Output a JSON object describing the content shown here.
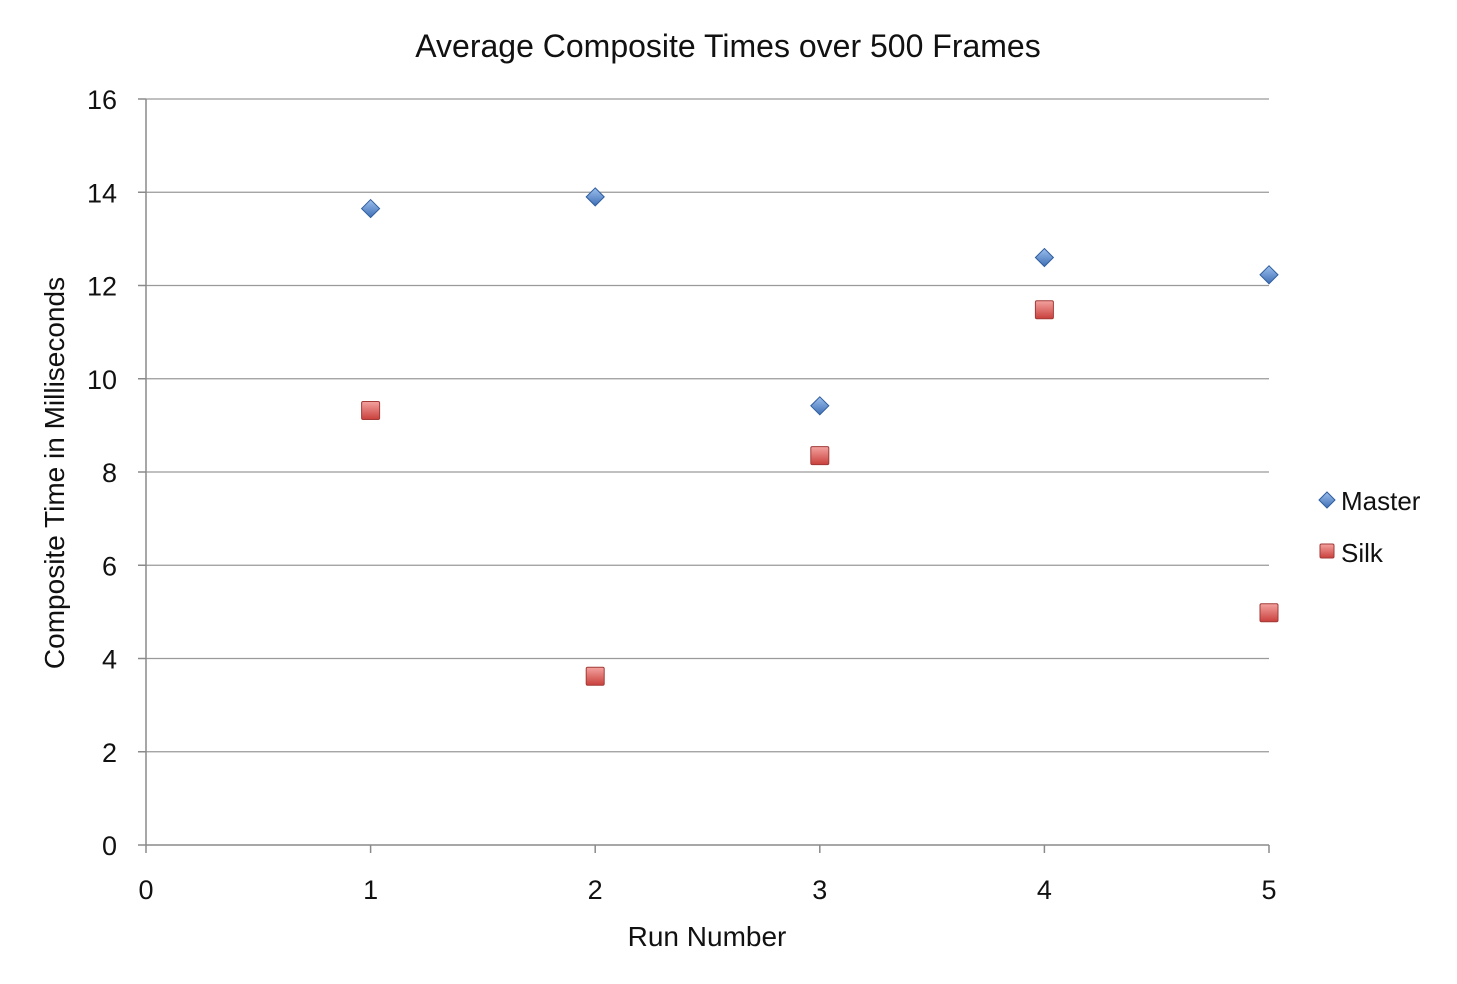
{
  "chart_data": {
    "type": "scatter",
    "title": "Average Composite Times over 500 Frames",
    "xlabel": "Run Number",
    "ylabel": "Composite Time in Milliseconds",
    "xlim": [
      0,
      5
    ],
    "ylim": [
      0,
      16
    ],
    "xticks": [
      0,
      1,
      2,
      3,
      4,
      5
    ],
    "yticks": [
      0,
      2,
      4,
      6,
      8,
      10,
      12,
      14,
      16
    ],
    "grid": "horizontal",
    "legend_position": "right",
    "series": [
      {
        "name": "Master",
        "marker": "diamond",
        "color": "#4f81bd",
        "x": [
          1,
          2,
          3,
          4,
          5
        ],
        "y": [
          13.65,
          13.9,
          9.42,
          12.6,
          12.23
        ]
      },
      {
        "name": "Silk",
        "marker": "square",
        "color": "#c0504d",
        "x": [
          1,
          2,
          3,
          4,
          5
        ],
        "y": [
          9.32,
          3.62,
          8.35,
          11.48,
          4.98
        ]
      }
    ]
  }
}
